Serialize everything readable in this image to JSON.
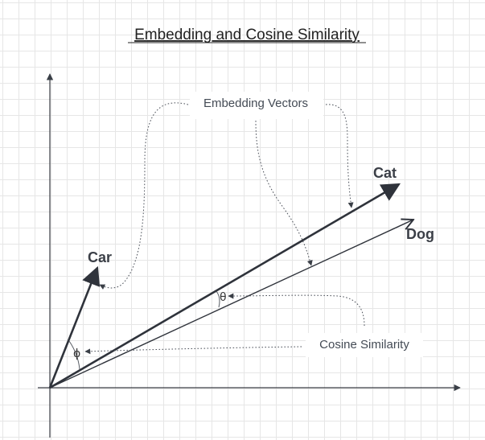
{
  "title": "Embedding and Cosine Similarity",
  "callouts": {
    "embedding_vectors": "Embedding Vectors",
    "cosine_similarity": "Cosine Similarity"
  },
  "vectors": {
    "cat": "Cat",
    "dog": "Dog",
    "car": "Car"
  },
  "angles": {
    "theta": "θ",
    "phi": "ϕ"
  },
  "colors": {
    "grid": "#e6e6e6",
    "ink": "#2f333b",
    "callout_text": "#444b55"
  }
}
